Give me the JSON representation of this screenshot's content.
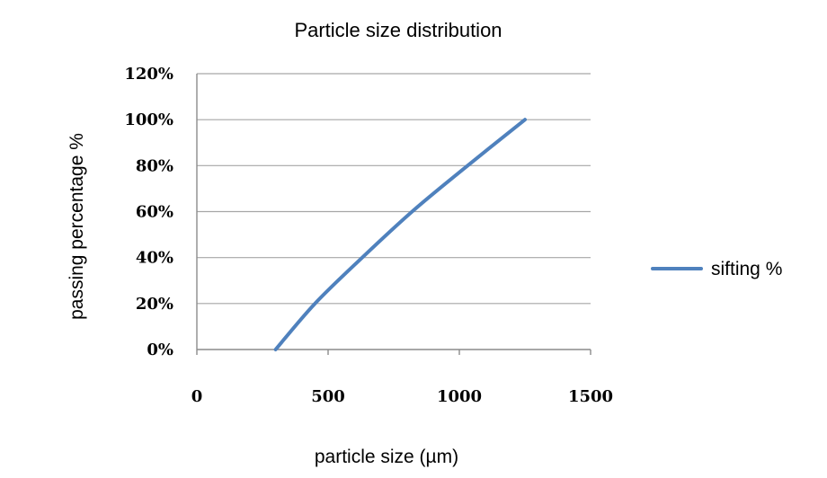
{
  "chart_data": {
    "type": "line",
    "title": "Particle size distribution",
    "xlabel": "particle size (µm)",
    "ylabel": "passing percentage  %",
    "xlim": [
      0,
      1500
    ],
    "ylim": [
      0,
      1.2
    ],
    "x_ticks": [
      "0",
      "500",
      "1000",
      "1500"
    ],
    "y_ticks": [
      "0%",
      "20%",
      "40%",
      "60%",
      "80%",
      "100%",
      "120%"
    ],
    "grid": "horizontal",
    "legend_position": "right",
    "series": [
      {
        "name": "sifting %",
        "color": "#4f81bd",
        "x": [
          300,
          450,
          630,
          820,
          1010,
          1250
        ],
        "y": [
          0.0,
          0.2,
          0.4,
          0.6,
          0.78,
          1.0
        ]
      }
    ]
  }
}
